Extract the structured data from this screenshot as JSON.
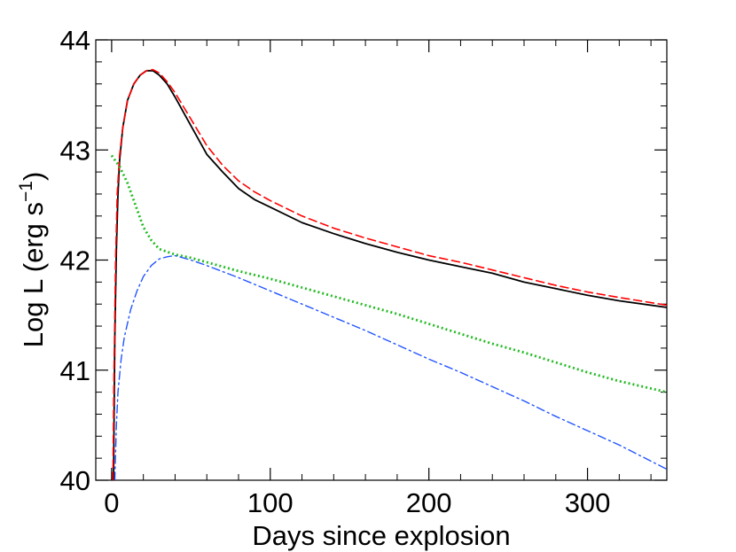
{
  "chart_data": {
    "type": "line",
    "title": "",
    "xlabel": "Days since explosion",
    "ylabel": {
      "main": "Log L (erg s",
      "superscript": "−1",
      "close": ")"
    },
    "xlim": [
      -10,
      350
    ],
    "ylim": [
      40,
      44
    ],
    "x_ticks": [
      0,
      100,
      200,
      300
    ],
    "y_ticks": [
      40,
      41,
      42,
      43,
      44
    ],
    "series": [
      {
        "color": "#000000",
        "style": "solid",
        "x": [
          1.2,
          2,
          3,
          4,
          5,
          7,
          10,
          14,
          18,
          22,
          26,
          30,
          35,
          40,
          50,
          60,
          70,
          80,
          90,
          100,
          120,
          140,
          160,
          180,
          200,
          220,
          240,
          260,
          280,
          300,
          320,
          350
        ],
        "y": [
          40.0,
          41.3,
          42.1,
          42.6,
          42.9,
          43.2,
          43.45,
          43.6,
          43.68,
          43.72,
          43.72,
          43.68,
          43.6,
          43.48,
          43.22,
          42.96,
          42.8,
          42.65,
          42.55,
          42.48,
          42.34,
          42.24,
          42.15,
          42.07,
          42.0,
          41.94,
          41.88,
          41.8,
          41.74,
          41.68,
          41.63,
          41.57
        ]
      },
      {
        "color": "#ff0000",
        "style": "dashed",
        "x": [
          0.8,
          1.5,
          2.5,
          3.5,
          5,
          7,
          10,
          14,
          18,
          22,
          26,
          30,
          35,
          40,
          50,
          60,
          70,
          80,
          90,
          100,
          120,
          140,
          160,
          180,
          200,
          220,
          240,
          260,
          280,
          300,
          320,
          350
        ],
        "y": [
          40.0,
          41.0,
          42.0,
          42.6,
          42.95,
          43.2,
          43.45,
          43.6,
          43.68,
          43.72,
          43.73,
          43.7,
          43.62,
          43.52,
          43.28,
          43.04,
          42.86,
          42.72,
          42.62,
          42.54,
          42.4,
          42.29,
          42.2,
          42.12,
          42.04,
          41.98,
          41.91,
          41.84,
          41.77,
          41.71,
          41.66,
          41.59
        ]
      },
      {
        "color": "#22bb22",
        "style": "dotted",
        "x": [
          0,
          5,
          10,
          15,
          20,
          25,
          30,
          40,
          50,
          60,
          80,
          100,
          120,
          140,
          160,
          180,
          200,
          220,
          240,
          260,
          280,
          300,
          320,
          350
        ],
        "y": [
          42.95,
          42.85,
          42.7,
          42.5,
          42.3,
          42.18,
          42.1,
          42.05,
          42.02,
          41.98,
          41.9,
          41.83,
          41.75,
          41.67,
          41.59,
          41.51,
          41.42,
          41.33,
          41.24,
          41.16,
          41.07,
          40.98,
          40.9,
          40.8
        ]
      },
      {
        "color": "#2255ff",
        "style": "dashdot",
        "x": [
          2,
          3,
          4,
          6,
          8,
          12,
          16,
          20,
          25,
          30,
          35,
          40,
          50,
          60,
          80,
          100,
          120,
          140,
          160,
          180,
          200,
          220,
          240,
          260,
          280,
          300,
          320,
          350
        ],
        "y": [
          40.0,
          40.5,
          40.8,
          41.1,
          41.3,
          41.55,
          41.72,
          41.85,
          41.95,
          42.01,
          42.03,
          42.04,
          42.0,
          41.95,
          41.84,
          41.72,
          41.6,
          41.48,
          41.36,
          41.23,
          41.1,
          40.98,
          40.85,
          40.72,
          40.58,
          40.45,
          40.32,
          40.1
        ]
      }
    ]
  }
}
